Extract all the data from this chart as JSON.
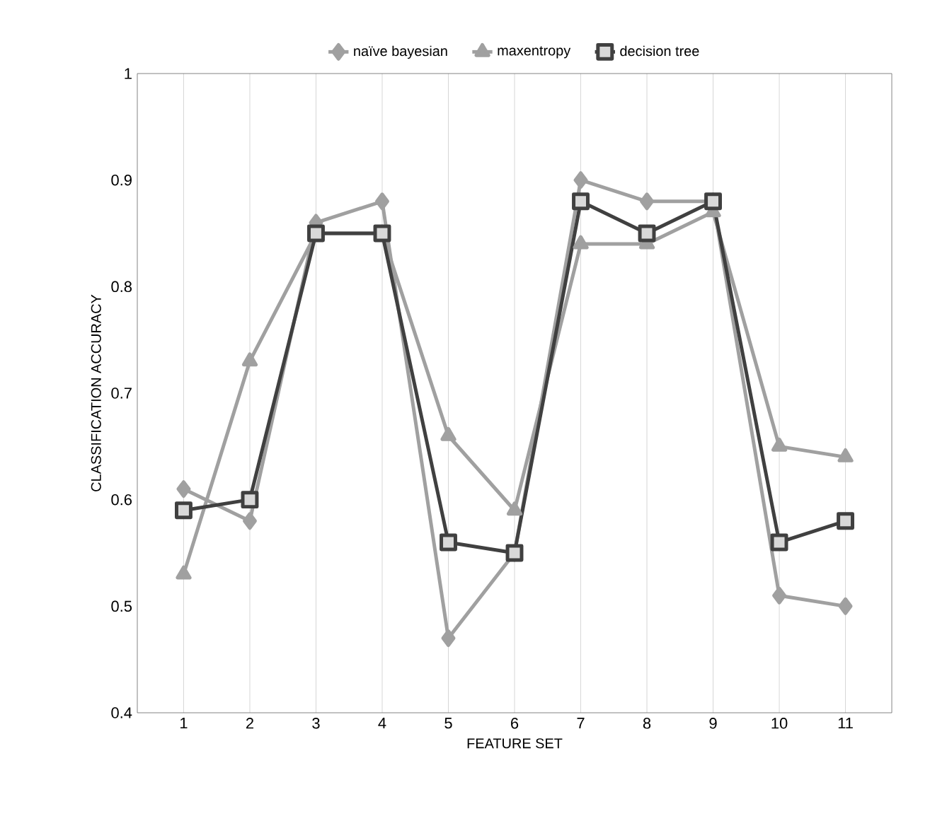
{
  "chart_data": {
    "type": "line",
    "xlabel": "FEATURE SET",
    "ylabel": "CLASSIFICATION ACCURACY",
    "categories": [
      "1",
      "2",
      "3",
      "4",
      "5",
      "6",
      "7",
      "8",
      "9",
      "10",
      "11"
    ],
    "series": [
      {
        "name": "naïve bayesian",
        "color": "#a0a0a0",
        "marker": "diamond",
        "values": [
          0.61,
          0.58,
          0.86,
          0.88,
          0.47,
          0.55,
          0.9,
          0.88,
          0.88,
          0.51,
          0.5
        ]
      },
      {
        "name": "maxentropy",
        "color": "#a0a0a0",
        "marker": "triangle",
        "values": [
          0.53,
          0.73,
          0.85,
          0.85,
          0.66,
          0.59,
          0.84,
          0.84,
          0.87,
          0.65,
          0.64
        ]
      },
      {
        "name": "decision tree",
        "color": "#404040",
        "marker": "square",
        "values": [
          0.59,
          0.6,
          0.85,
          0.85,
          0.56,
          0.55,
          0.88,
          0.85,
          0.88,
          0.56,
          0.58
        ]
      }
    ],
    "ylim": [
      0.4,
      1
    ],
    "yticks": [
      0.4,
      0.5,
      0.6,
      0.7,
      0.8,
      0.9,
      1
    ],
    "grid": "x",
    "legend": "top",
    "line_style": "solid"
  }
}
